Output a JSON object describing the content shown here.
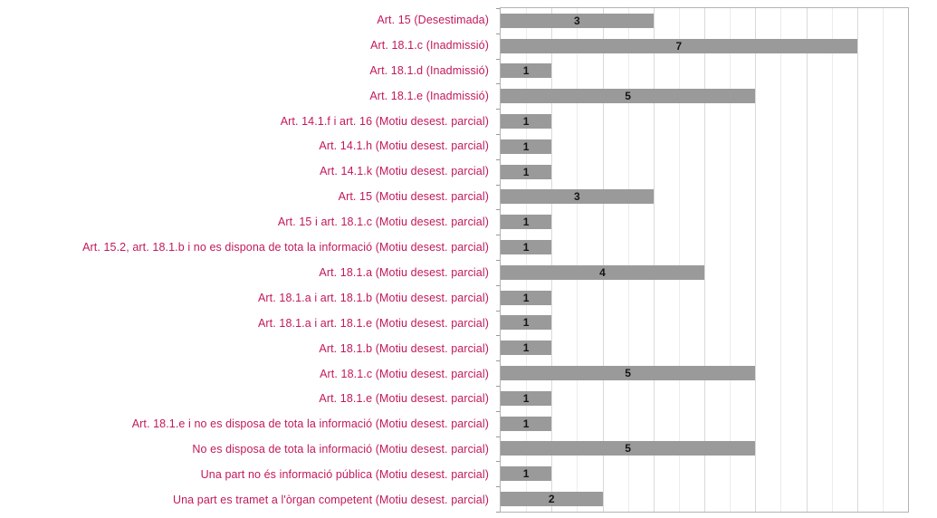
{
  "chart_data": {
    "type": "bar",
    "orientation": "horizontal",
    "title": "",
    "xlabel": "",
    "ylabel": "",
    "xlim": [
      0,
      8
    ],
    "gridline_interval": 0.5,
    "grid": true,
    "legend": false,
    "categories": [
      "Art. 15 (Desestimada)",
      "Art. 18.1.c (Inadmissió)",
      "Art. 18.1.d (Inadmissió)",
      "Art. 18.1.e (Inadmissió)",
      "Art. 14.1.f i art. 16 (Motiu desest. parcial)",
      "Art. 14.1.h (Motiu desest. parcial)",
      "Art. 14.1.k (Motiu desest. parcial)",
      "Art. 15 (Motiu desest. parcial)",
      "Art. 15 i art. 18.1.c (Motiu desest. parcial)",
      "Art. 15.2, art. 18.1.b i no es dispona de tota la informació (Motiu desest. parcial)",
      "Art. 18.1.a (Motiu desest. parcial)",
      "Art. 18.1.a i art. 18.1.b (Motiu desest. parcial)",
      "Art. 18.1.a i art. 18.1.e (Motiu desest. parcial)",
      "Art. 18.1.b (Motiu desest. parcial)",
      "Art. 18.1.c (Motiu desest. parcial)",
      "Art. 18.1.e (Motiu desest. parcial)",
      "Art. 18.1.e i no es disposa de tota la informació (Motiu desest. parcial)",
      "No es disposa de tota la informació (Motiu desest. parcial)",
      "Una part no és informació pública (Motiu desest. parcial)",
      "Una part es tramet a l'òrgan competent (Motiu desest. parcial)"
    ],
    "values": [
      3,
      7,
      1,
      5,
      1,
      1,
      1,
      3,
      1,
      1,
      4,
      1,
      1,
      1,
      5,
      1,
      1,
      5,
      1,
      2
    ],
    "colors": {
      "bar": "#9a9a9a",
      "category_label_text": "#c2185b",
      "value_label_text": "#141414",
      "gridline_minor": "#ececec",
      "gridline_major": "#d9d9d9",
      "plot_border": "#b3b3b3",
      "tick": "#9a9a9a",
      "background": "#ffffff"
    }
  }
}
